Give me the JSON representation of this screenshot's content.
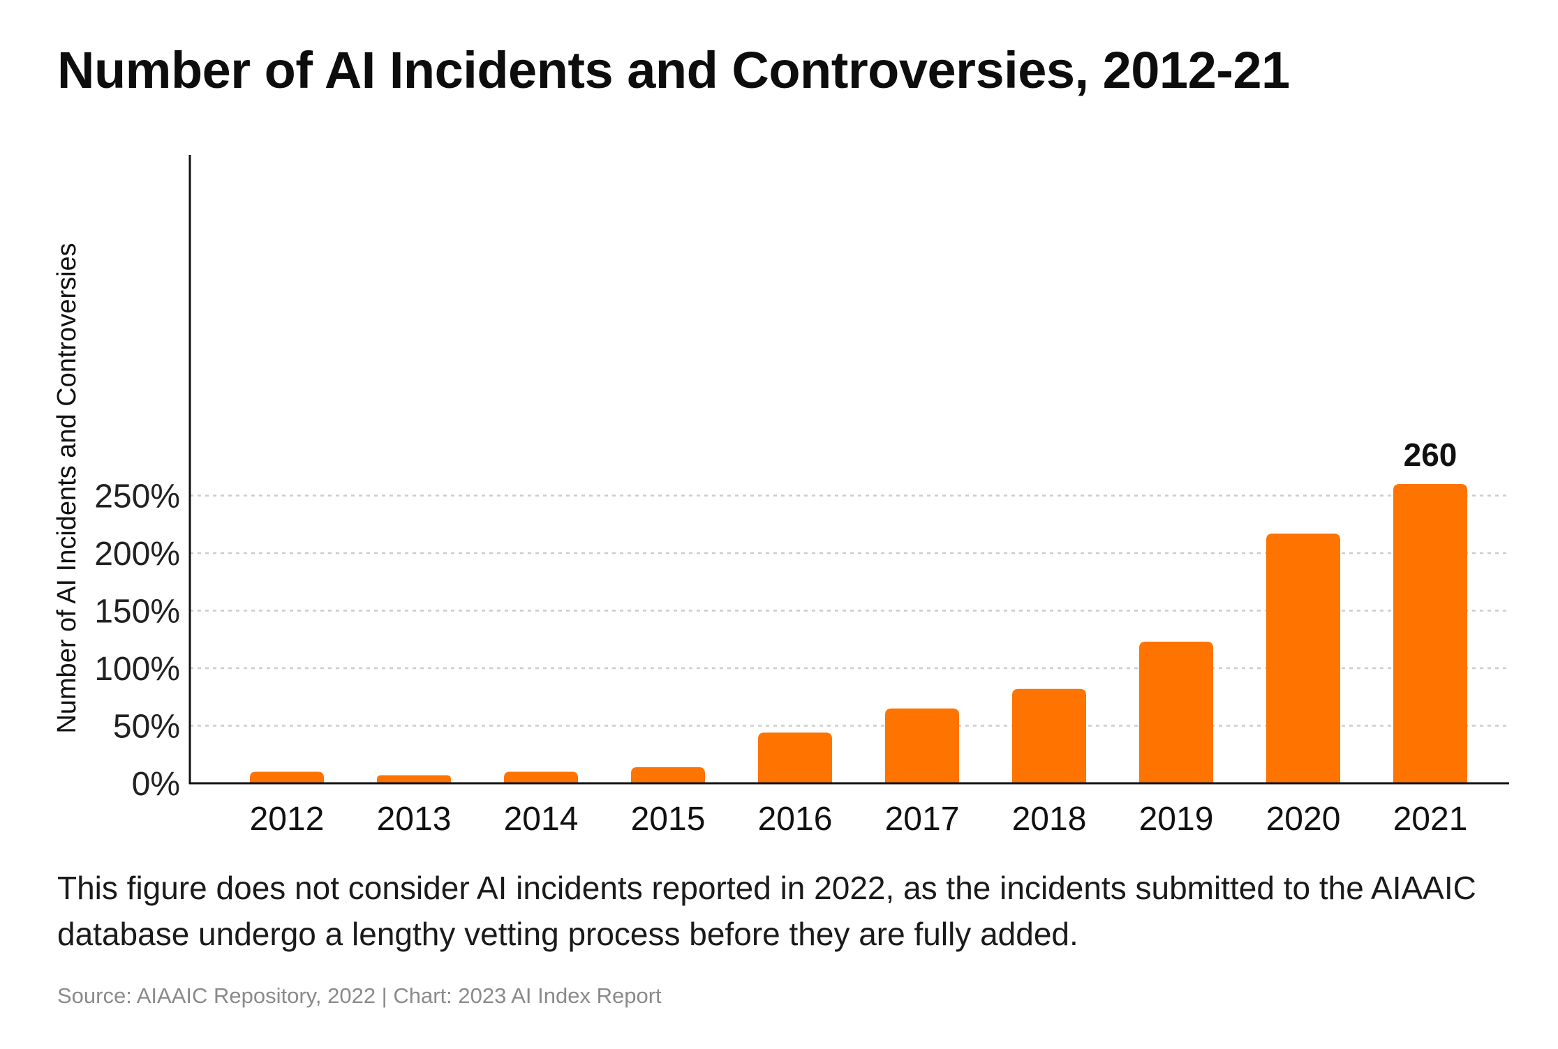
{
  "page": {
    "title": "Number of AI Incidents and Controversies, 2012-21",
    "note": "This figure does not consider AI incidents reported in 2022, as the incidents submitted to the AIAAIC database undergo a lengthy vetting process before they are fully added.",
    "source": "Source: AIAAIC Repository, 2022 | Chart: 2023 AI Index Report"
  },
  "colors": {
    "bar": "#FF7300",
    "grid": "#CCCCCC",
    "axis": "#111111"
  },
  "chart_data": {
    "type": "bar",
    "title": "Number of AI Incidents and Controversies, 2012-21",
    "xlabel": "",
    "ylabel": "Number of AI Incidents and Controversies",
    "categories": [
      "2012",
      "2013",
      "2014",
      "2015",
      "2016",
      "2017",
      "2018",
      "2019",
      "2020",
      "2021"
    ],
    "values": [
      10,
      7,
      10,
      14,
      44,
      65,
      82,
      123,
      217,
      260
    ],
    "data_labels": [
      {
        "category": "2021",
        "text": "260"
      }
    ],
    "y_ticks": [
      {
        "value": 0,
        "label": "0%"
      },
      {
        "value": 50,
        "label": "50%"
      },
      {
        "value": 100,
        "label": "100%"
      },
      {
        "value": 150,
        "label": "150%"
      },
      {
        "value": 200,
        "label": "200%"
      },
      {
        "value": 250,
        "label": "250%"
      }
    ],
    "ylim": [
      0,
      272
    ],
    "grid": true,
    "legend": "none"
  }
}
